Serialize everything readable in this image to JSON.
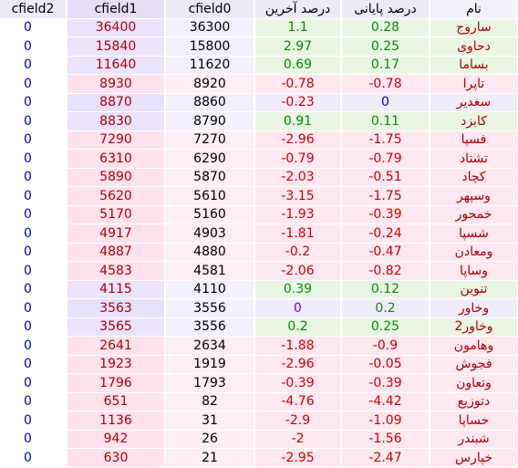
{
  "headers": {
    "cfield2": "cfield2",
    "cfield1": "cfield1",
    "cfield0": "cfield0",
    "last_pct": "درصد آخرین",
    "final_pct": "درصد پایانی",
    "name": "نام"
  },
  "rows": [
    {
      "cfield2": "0",
      "cfield1": "36400",
      "cfield0": "36300",
      "last": "1.1",
      "final": "0.28",
      "name": "ساروج",
      "tone": "g",
      "last_sign": "pos",
      "final_sign": "pos"
    },
    {
      "cfield2": "0",
      "cfield1": "15840",
      "cfield0": "15800",
      "last": "2.97",
      "final": "0.25",
      "name": "دحاوی",
      "tone": "g",
      "last_sign": "pos",
      "final_sign": "pos"
    },
    {
      "cfield2": "0",
      "cfield1": "11640",
      "cfield0": "11620",
      "last": "0.69",
      "final": "0.17",
      "name": "بساما",
      "tone": "g",
      "last_sign": "pos",
      "final_sign": "pos"
    },
    {
      "cfield2": "0",
      "cfield1": "8930",
      "cfield0": "8920",
      "last": "-0.78",
      "final": "-0.78",
      "name": "تاپرا",
      "tone": "p",
      "last_sign": "neg",
      "final_sign": "neg"
    },
    {
      "cfield2": "0",
      "cfield1": "8870",
      "cfield0": "8860",
      "last": "-0.23",
      "final": "0",
      "name": "سغدیر",
      "tone": "v",
      "last_sign": "neg",
      "final_sign": "zero-blue"
    },
    {
      "cfield2": "0",
      "cfield1": "8830",
      "cfield0": "8790",
      "last": "0.91",
      "final": "0.11",
      "name": "کابزد",
      "tone": "g",
      "last_sign": "pos",
      "final_sign": "pos"
    },
    {
      "cfield2": "0",
      "cfield1": "7290",
      "cfield0": "7270",
      "last": "-2.96",
      "final": "-1.75",
      "name": "فسپا",
      "tone": "p",
      "last_sign": "neg",
      "final_sign": "neg"
    },
    {
      "cfield2": "0",
      "cfield1": "6310",
      "cfield0": "6290",
      "last": "-0.79",
      "final": "-0.79",
      "name": "تشتاد",
      "tone": "p",
      "last_sign": "neg",
      "final_sign": "neg"
    },
    {
      "cfield2": "0",
      "cfield1": "5890",
      "cfield0": "5870",
      "last": "-2.03",
      "final": "-0.51",
      "name": "کچاد",
      "tone": "p",
      "last_sign": "neg",
      "final_sign": "neg"
    },
    {
      "cfield2": "0",
      "cfield1": "5620",
      "cfield0": "5610",
      "last": "-3.15",
      "final": "-1.75",
      "name": "وسپهر",
      "tone": "p",
      "last_sign": "neg",
      "final_sign": "neg"
    },
    {
      "cfield2": "0",
      "cfield1": "5170",
      "cfield0": "5160",
      "last": "-1.93",
      "final": "-0.39",
      "name": "خمحور",
      "tone": "p",
      "last_sign": "neg",
      "final_sign": "neg"
    },
    {
      "cfield2": "0",
      "cfield1": "4917",
      "cfield0": "4903",
      "last": "-1.81",
      "final": "-0.24",
      "name": "شسپا",
      "tone": "p",
      "last_sign": "neg",
      "final_sign": "neg"
    },
    {
      "cfield2": "0",
      "cfield1": "4887",
      "cfield0": "4880",
      "last": "-0.2",
      "final": "-0.47",
      "name": "ومعادن",
      "tone": "p",
      "last_sign": "neg",
      "final_sign": "neg"
    },
    {
      "cfield2": "0",
      "cfield1": "4583",
      "cfield0": "4581",
      "last": "-2.06",
      "final": "-0.82",
      "name": "وساپا",
      "tone": "p",
      "last_sign": "neg",
      "final_sign": "neg"
    },
    {
      "cfield2": "0",
      "cfield1": "4115",
      "cfield0": "4110",
      "last": "0.39",
      "final": "0.12",
      "name": "تنوین",
      "tone": "g",
      "last_sign": "pos",
      "final_sign": "pos"
    },
    {
      "cfield2": "0",
      "cfield1": "3563",
      "cfield0": "3556",
      "last": "0",
      "final": "0.2",
      "name": "وخاور",
      "tone": "v",
      "last_sign": "zero",
      "final_sign": "pos"
    },
    {
      "cfield2": "0",
      "cfield1": "3565",
      "cfield0": "3556",
      "last": "0.2",
      "final": "0.25",
      "name": "وخاور2",
      "tone": "g",
      "last_sign": "pos",
      "final_sign": "pos"
    },
    {
      "cfield2": "0",
      "cfield1": "2641",
      "cfield0": "2634",
      "last": "-1.88",
      "final": "-0.9",
      "name": "وهامون",
      "tone": "p",
      "last_sign": "neg",
      "final_sign": "neg"
    },
    {
      "cfield2": "0",
      "cfield1": "1923",
      "cfield0": "1919",
      "last": "-2.96",
      "final": "-0.05",
      "name": "فجوش",
      "tone": "p",
      "last_sign": "neg",
      "final_sign": "neg"
    },
    {
      "cfield2": "0",
      "cfield1": "1796",
      "cfield0": "1793",
      "last": "-0.39",
      "final": "-0.39",
      "name": "وتعاون",
      "tone": "p",
      "last_sign": "neg",
      "final_sign": "neg"
    },
    {
      "cfield2": "0",
      "cfield1": "651",
      "cfield0": "82",
      "last": "-4.76",
      "final": "-4.42",
      "name": "دتوزیع",
      "tone": "p",
      "last_sign": "neg",
      "final_sign": "neg"
    },
    {
      "cfield2": "0",
      "cfield1": "1136",
      "cfield0": "31",
      "last": "-2.9",
      "final": "-1.09",
      "name": "خساپا",
      "tone": "p",
      "last_sign": "neg",
      "final_sign": "neg"
    },
    {
      "cfield2": "0",
      "cfield1": "942",
      "cfield0": "26",
      "last": "-2",
      "final": "-1.56",
      "name": "شبندر",
      "tone": "p",
      "last_sign": "neg",
      "final_sign": "neg"
    },
    {
      "cfield2": "0",
      "cfield1": "630",
      "cfield0": "21",
      "last": "-2.95",
      "final": "-2.47",
      "name": "خپارس",
      "tone": "p",
      "last_sign": "neg",
      "final_sign": "neg"
    }
  ]
}
